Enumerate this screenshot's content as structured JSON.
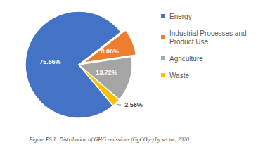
{
  "chart_data": {
    "type": "pie",
    "title": "Figure ES 1: Distribution of GHG emissions (GgCO₂e) by sector, 2020",
    "categories": [
      "Energy",
      "Industrial Processes and Product Use",
      "Agriculture",
      "Waste"
    ],
    "values": [
      75.66,
      8.06,
      13.72,
      2.56
    ],
    "value_labels": [
      "75.66%",
      "8.06%",
      "13.72%",
      "2.56%"
    ],
    "colors": [
      "#4472c4",
      "#ed7d31",
      "#a5a5a5",
      "#ffc000"
    ],
    "data_labels": true,
    "legend": "right"
  }
}
